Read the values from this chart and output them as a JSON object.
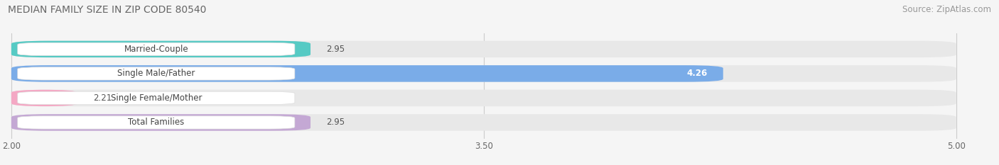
{
  "title": "MEDIAN FAMILY SIZE IN ZIP CODE 80540",
  "source": "Source: ZipAtlas.com",
  "categories": [
    "Married-Couple",
    "Single Male/Father",
    "Single Female/Mother",
    "Total Families"
  ],
  "values": [
    2.95,
    4.26,
    2.21,
    2.95
  ],
  "bar_colors": [
    "#56cac4",
    "#7aace8",
    "#f4a8c4",
    "#c4a8d4"
  ],
  "xmin": 2.0,
  "xmax": 5.0,
  "xticks": [
    2.0,
    3.5,
    5.0
  ],
  "background_color": "#f5f5f5",
  "bar_bg_color": "#e8e8e8",
  "title_fontsize": 10,
  "source_fontsize": 8.5,
  "label_fontsize": 8.5,
  "value_fontsize": 8.5
}
